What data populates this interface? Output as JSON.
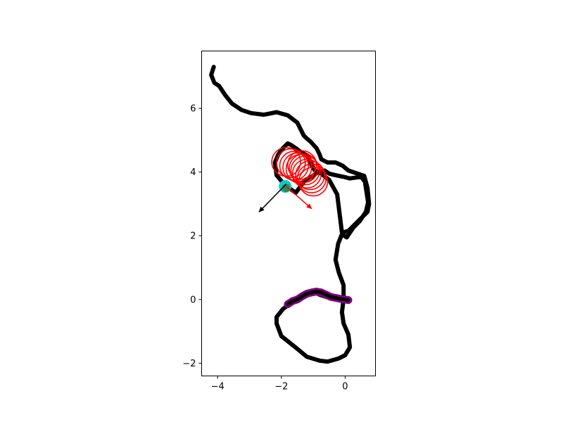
{
  "chart_data": {
    "type": "line",
    "title": "",
    "xlabel": "",
    "ylabel": "",
    "xlim": [
      -4.5,
      0.95
    ],
    "ylim": [
      -2.4,
      7.8
    ],
    "xticks": [
      -4,
      -2,
      0
    ],
    "yticks": [
      -2,
      0,
      2,
      4,
      6
    ],
    "x_tick_labels": [
      "−4",
      "−2",
      "0"
    ],
    "y_tick_labels": [
      "−2",
      "0",
      "2",
      "4",
      "6"
    ],
    "grid": false,
    "series": [
      {
        "role": "trajectory",
        "color": "#000000",
        "x": [
          -4.12,
          -4.2,
          -4.1,
          -3.95,
          -3.75,
          -3.55,
          -3.25,
          -2.95,
          -2.55,
          -2.15,
          -1.8,
          -1.5,
          -1.3,
          -1.2,
          -1.08,
          -0.9,
          -0.8,
          -0.75,
          -0.55,
          -0.3,
          -0.08,
          0.1,
          0.6,
          0.7,
          0.75,
          0.7,
          0.5,
          0.3,
          0.1,
          -0.1,
          -0.25,
          -0.5,
          -0.75,
          -0.95,
          -1.05,
          -1.15,
          -1.35,
          -1.55,
          -1.7,
          -1.8,
          -1.95,
          -2.1,
          -2.2,
          -2.15,
          -1.9,
          -1.55,
          -1.25,
          -1.05,
          -0.85,
          -0.65,
          -0.5,
          -0.3,
          -0.05,
          0.15,
          0.5,
          0.62,
          0.72,
          0.65,
          0.45,
          0.25,
          0.05,
          -0.1,
          -0.22,
          -0.3,
          -0.2,
          -0.05,
          -0.05,
          -0.1,
          -0.05,
          0.1,
          0.15,
          0.0,
          -0.2,
          -0.55,
          -0.8,
          -1.2,
          -1.5,
          -1.75,
          -2.0,
          -2.15,
          -2.15,
          -1.95,
          -1.75,
          -1.55,
          -1.35,
          -1.2,
          -1.0,
          -0.8,
          -0.5,
          -0.3,
          0.0,
          0.1
        ],
        "y": [
          7.3,
          7.05,
          6.8,
          6.7,
          6.4,
          6.15,
          5.95,
          5.85,
          5.8,
          5.88,
          5.78,
          5.55,
          5.15,
          5.05,
          4.95,
          4.75,
          4.55,
          4.4,
          4.3,
          4.3,
          4.2,
          4.05,
          3.88,
          3.5,
          3.0,
          2.75,
          2.55,
          2.35,
          2.15,
          2.1,
          3.3,
          3.75,
          3.95,
          4.05,
          4.2,
          4.5,
          4.6,
          4.75,
          4.85,
          4.9,
          4.75,
          4.55,
          4.3,
          3.9,
          3.6,
          3.35,
          3.75,
          3.85,
          4.0,
          4.05,
          3.95,
          3.9,
          3.85,
          3.8,
          3.85,
          3.7,
          3.05,
          2.75,
          2.45,
          2.25,
          1.95,
          2.05,
          1.75,
          1.25,
          0.85,
          0.45,
          0.0,
          -0.4,
          -0.75,
          -1.1,
          -1.5,
          -1.75,
          -1.85,
          -1.95,
          -1.92,
          -1.8,
          -1.55,
          -1.35,
          -1.15,
          -0.75,
          -0.55,
          -0.3,
          -0.15,
          -0.05,
          0.05,
          0.2,
          0.25,
          0.15,
          0.05,
          0.0,
          -0.05,
          -0.05
        ]
      },
      {
        "role": "highlighted-segment",
        "color": "#800080",
        "x": [
          -1.8,
          -1.65,
          -1.5,
          -1.35,
          -1.2,
          -1.05,
          -0.9,
          -0.75,
          -0.6,
          -0.45,
          -0.3,
          -0.15,
          0.0,
          0.1
        ],
        "y": [
          -0.15,
          -0.05,
          0.0,
          0.1,
          0.18,
          0.22,
          0.25,
          0.22,
          0.15,
          0.08,
          0.05,
          0.02,
          0.0,
          -0.02
        ]
      }
    ],
    "circles": {
      "color": "#ff0000",
      "radius": 0.45,
      "centers": [
        [
          -1.85,
          4.32
        ],
        [
          -1.7,
          4.28
        ],
        [
          -1.6,
          4.2
        ],
        [
          -1.5,
          4.15
        ],
        [
          -1.4,
          4.1
        ],
        [
          -1.3,
          4.12
        ],
        [
          -1.25,
          4.05
        ],
        [
          -1.2,
          3.95
        ],
        [
          -1.1,
          3.9
        ],
        [
          -1.05,
          3.8
        ],
        [
          -1.0,
          3.7
        ],
        [
          -1.35,
          4.22
        ]
      ]
    },
    "markers": [
      {
        "role": "current-position",
        "color": "#00ced1",
        "x": -1.88,
        "y": 3.55
      },
      {
        "role": "goal-point",
        "color": "#2e8b57",
        "x": -1.85,
        "y": 3.5
      }
    ],
    "arrows": [
      {
        "color": "#000000",
        "from": [
          -1.85,
          3.62
        ],
        "to": [
          -2.7,
          2.75
        ]
      },
      {
        "color": "#ff0000",
        "from": [
          -1.85,
          3.55
        ],
        "to": [
          -1.05,
          2.85
        ]
      }
    ]
  }
}
